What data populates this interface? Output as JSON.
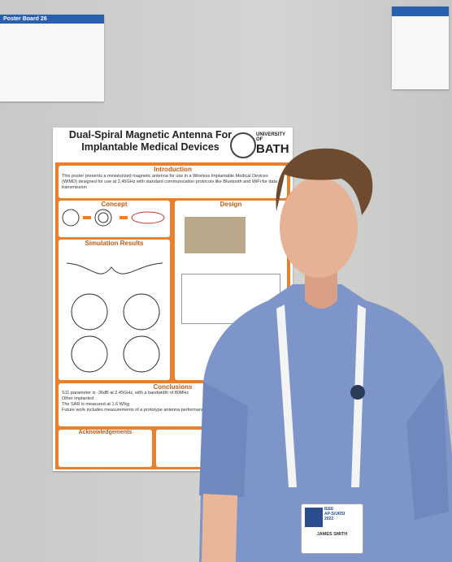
{
  "side_board": {
    "title": "Poster Board 26"
  },
  "poster": {
    "title": [
      "Dual-Spiral Magnetic Antenna For",
      "Implantable Medical Devices"
    ],
    "institution": [
      "UNIVERSITY OF",
      "BATH"
    ],
    "sections": {
      "introduction": {
        "heading": "Introduction",
        "text": "This poster presents a miniaturized magnetic antenna for use in a Wireless Implantable Medical Devices (WIMD) designed for use at 2.45GHz with standard communication protocols like Bluetooth and WiFi for data transmission"
      },
      "concept": {
        "heading": "Concept"
      },
      "design": {
        "heading": "Design"
      },
      "simulation": {
        "heading": "Simulation Results"
      },
      "conclusions": {
        "heading": "Conclusions",
        "items": [
          "S11 parameter is -36dB at 2.45GHz, with a bandwidth of 80MHz",
          "Other implanted",
          "The SAR is measured at 1.6 W/kg",
          "Future work includes measurements of a prototype antenna performance"
        ]
      },
      "acknowledgements": {
        "heading": "Acknowledgements"
      }
    }
  },
  "badge": {
    "event": [
      "IEEE",
      "AP-S/URSI",
      "2022"
    ],
    "name": "JAMES SMITH"
  }
}
